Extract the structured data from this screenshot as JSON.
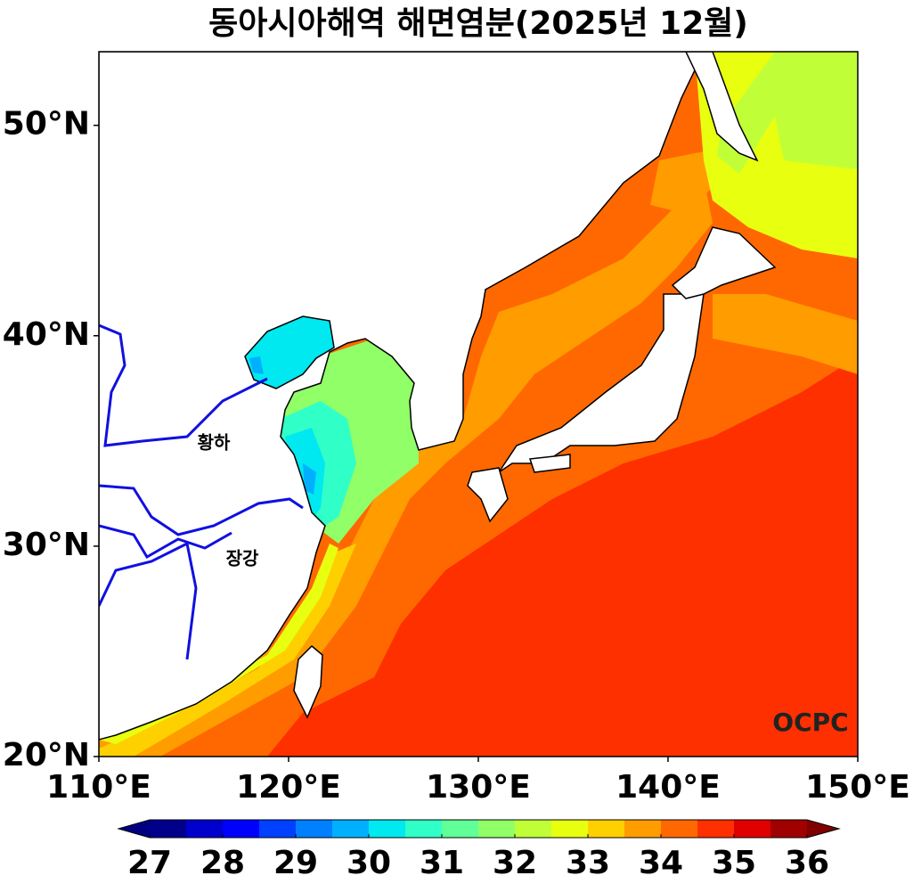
{
  "title": "동아시아해역 해면염분(2025년 12월)",
  "map": {
    "xlim": [
      110,
      150
    ],
    "ylim": [
      20,
      53.5
    ],
    "xticks": [
      {
        "value": 110,
        "label": "110°E"
      },
      {
        "value": 120,
        "label": "120°E"
      },
      {
        "value": 130,
        "label": "130°E"
      },
      {
        "value": 140,
        "label": "140°E"
      },
      {
        "value": 150,
        "label": "150°E"
      }
    ],
    "yticks": [
      {
        "value": 20,
        "label": "20°N"
      },
      {
        "value": 30,
        "label": "30°N"
      },
      {
        "value": 40,
        "label": "40°N"
      },
      {
        "value": 50,
        "label": "50°N"
      }
    ],
    "river_labels": [
      "황하",
      "장강"
    ],
    "logo": "OCPC"
  },
  "colorbar": {
    "lim": [
      27,
      36
    ],
    "ticks": [
      27,
      28,
      29,
      30,
      31,
      32,
      33,
      34,
      35,
      36
    ],
    "levels": [
      27,
      27.5,
      28,
      28.5,
      29,
      29.5,
      30,
      30.5,
      31,
      31.5,
      32,
      32.5,
      33,
      33.5,
      34,
      34.5,
      35,
      35.5,
      36
    ],
    "colors": [
      "#00008b",
      "#0000cd",
      "#0000ff",
      "#0040ff",
      "#0080ff",
      "#00b0ff",
      "#00e8f0",
      "#30ffc8",
      "#60ff98",
      "#90ff68",
      "#c0ff38",
      "#e8ff10",
      "#ffd000",
      "#ff9c00",
      "#ff6800",
      "#ff3000",
      "#e00000",
      "#a00000"
    ],
    "extend_colors": [
      "#000080",
      "#800000"
    ]
  }
}
